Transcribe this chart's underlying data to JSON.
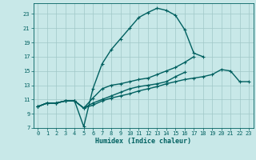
{
  "xlabel": "Humidex (Indice chaleur)",
  "bg_color": "#c8e8e8",
  "grid_color": "#a0c8c8",
  "line_color": "#006060",
  "xlim": [
    -0.5,
    23.5
  ],
  "ylim": [
    7,
    24.5
  ],
  "yticks": [
    7,
    9,
    11,
    13,
    15,
    17,
    19,
    21,
    23
  ],
  "xticks": [
    0,
    1,
    2,
    3,
    4,
    5,
    6,
    7,
    8,
    9,
    10,
    11,
    12,
    13,
    14,
    15,
    16,
    17,
    18,
    19,
    20,
    21,
    22,
    23
  ],
  "curve1_x": [
    0,
    1,
    2,
    3,
    4,
    5,
    6,
    7,
    8,
    9,
    10,
    11,
    12,
    13,
    14,
    15,
    16,
    17,
    18
  ],
  "curve1_y": [
    10.0,
    10.5,
    10.5,
    10.8,
    10.8,
    7.2,
    12.5,
    16.0,
    18.0,
    19.5,
    21.0,
    22.5,
    23.2,
    23.8,
    23.5,
    22.8,
    20.8,
    17.5,
    17.0
  ],
  "curve2_x": [
    0,
    1,
    2,
    3,
    4,
    5,
    6,
    7,
    8,
    9,
    10,
    11,
    12,
    13,
    14,
    15,
    16,
    17
  ],
  "curve2_y": [
    10.0,
    10.5,
    10.5,
    10.8,
    10.8,
    9.8,
    11.2,
    12.5,
    13.0,
    13.2,
    13.5,
    13.8,
    14.0,
    14.5,
    15.0,
    15.5,
    16.2,
    17.0
  ],
  "curve3_x": [
    0,
    1,
    2,
    3,
    4,
    5,
    6,
    7,
    8,
    9,
    10,
    11,
    12,
    13,
    14,
    15,
    16
  ],
  "curve3_y": [
    10.0,
    10.5,
    10.5,
    10.8,
    10.8,
    9.8,
    10.5,
    11.0,
    11.5,
    12.0,
    12.5,
    12.8,
    13.0,
    13.2,
    13.5,
    14.2,
    14.8
  ],
  "curve4_x": [
    0,
    1,
    2,
    3,
    4,
    5,
    6,
    7,
    8,
    9,
    10,
    11,
    12,
    13,
    14,
    15,
    16,
    17,
    18,
    19,
    20,
    21,
    22,
    23
  ],
  "curve4_y": [
    10.0,
    10.5,
    10.5,
    10.8,
    10.8,
    9.8,
    10.2,
    10.8,
    11.2,
    11.5,
    11.8,
    12.2,
    12.5,
    12.8,
    13.2,
    13.5,
    13.8,
    14.0,
    14.2,
    14.5,
    15.2,
    15.0,
    13.5,
    13.5
  ]
}
